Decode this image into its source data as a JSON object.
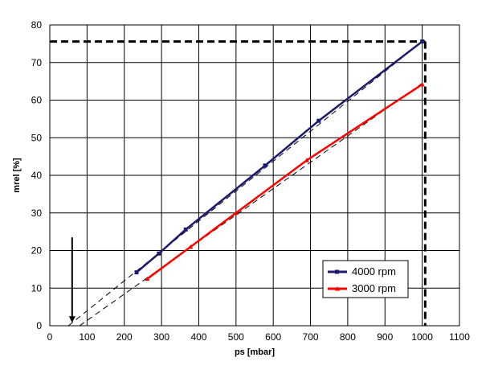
{
  "chart_data": {
    "type": "line",
    "xlabel": "ps [mbar]",
    "ylabel": "mrel [%]",
    "xlim": [
      0,
      1100
    ],
    "ylim": [
      0,
      80
    ],
    "x_ticks": [
      0,
      100,
      200,
      300,
      400,
      500,
      600,
      700,
      800,
      900,
      1000,
      1100
    ],
    "y_ticks": [
      0,
      10,
      20,
      30,
      40,
      50,
      60,
      70,
      80
    ],
    "grid": true,
    "legend_position": "bottom-right",
    "series": [
      {
        "name": "4000 rpm",
        "color": "#1a1a6e",
        "marker": "square",
        "x": [
          233,
          293,
          365,
          578,
          722,
          1000
        ],
        "y": [
          14.2,
          19.2,
          25.6,
          42.6,
          54.5,
          75.6
        ]
      },
      {
        "name": "3000 rpm",
        "color": "#ff0000",
        "marker": "triangle",
        "x": [
          262,
          378,
          500,
          690,
          1000
        ],
        "y": [
          12.5,
          21.0,
          30.0,
          44.0,
          64.2
        ]
      }
    ],
    "annotations": {
      "dashed_lines": [
        {
          "x": [
            50,
            1000
          ],
          "y": [
            0,
            75.6
          ]
        },
        {
          "x": [
            80,
            1000
          ],
          "y": [
            0,
            64.5
          ]
        }
      ],
      "reference_lines": [
        {
          "x": [
            0,
            1008
          ],
          "y": [
            75.6,
            75.6
          ]
        },
        {
          "x": [
            1008,
            1008
          ],
          "y": [
            75.6,
            0
          ]
        }
      ],
      "arrow": {
        "x": [
          60,
          60
        ],
        "y": [
          23.5,
          0.8
        ]
      }
    }
  }
}
